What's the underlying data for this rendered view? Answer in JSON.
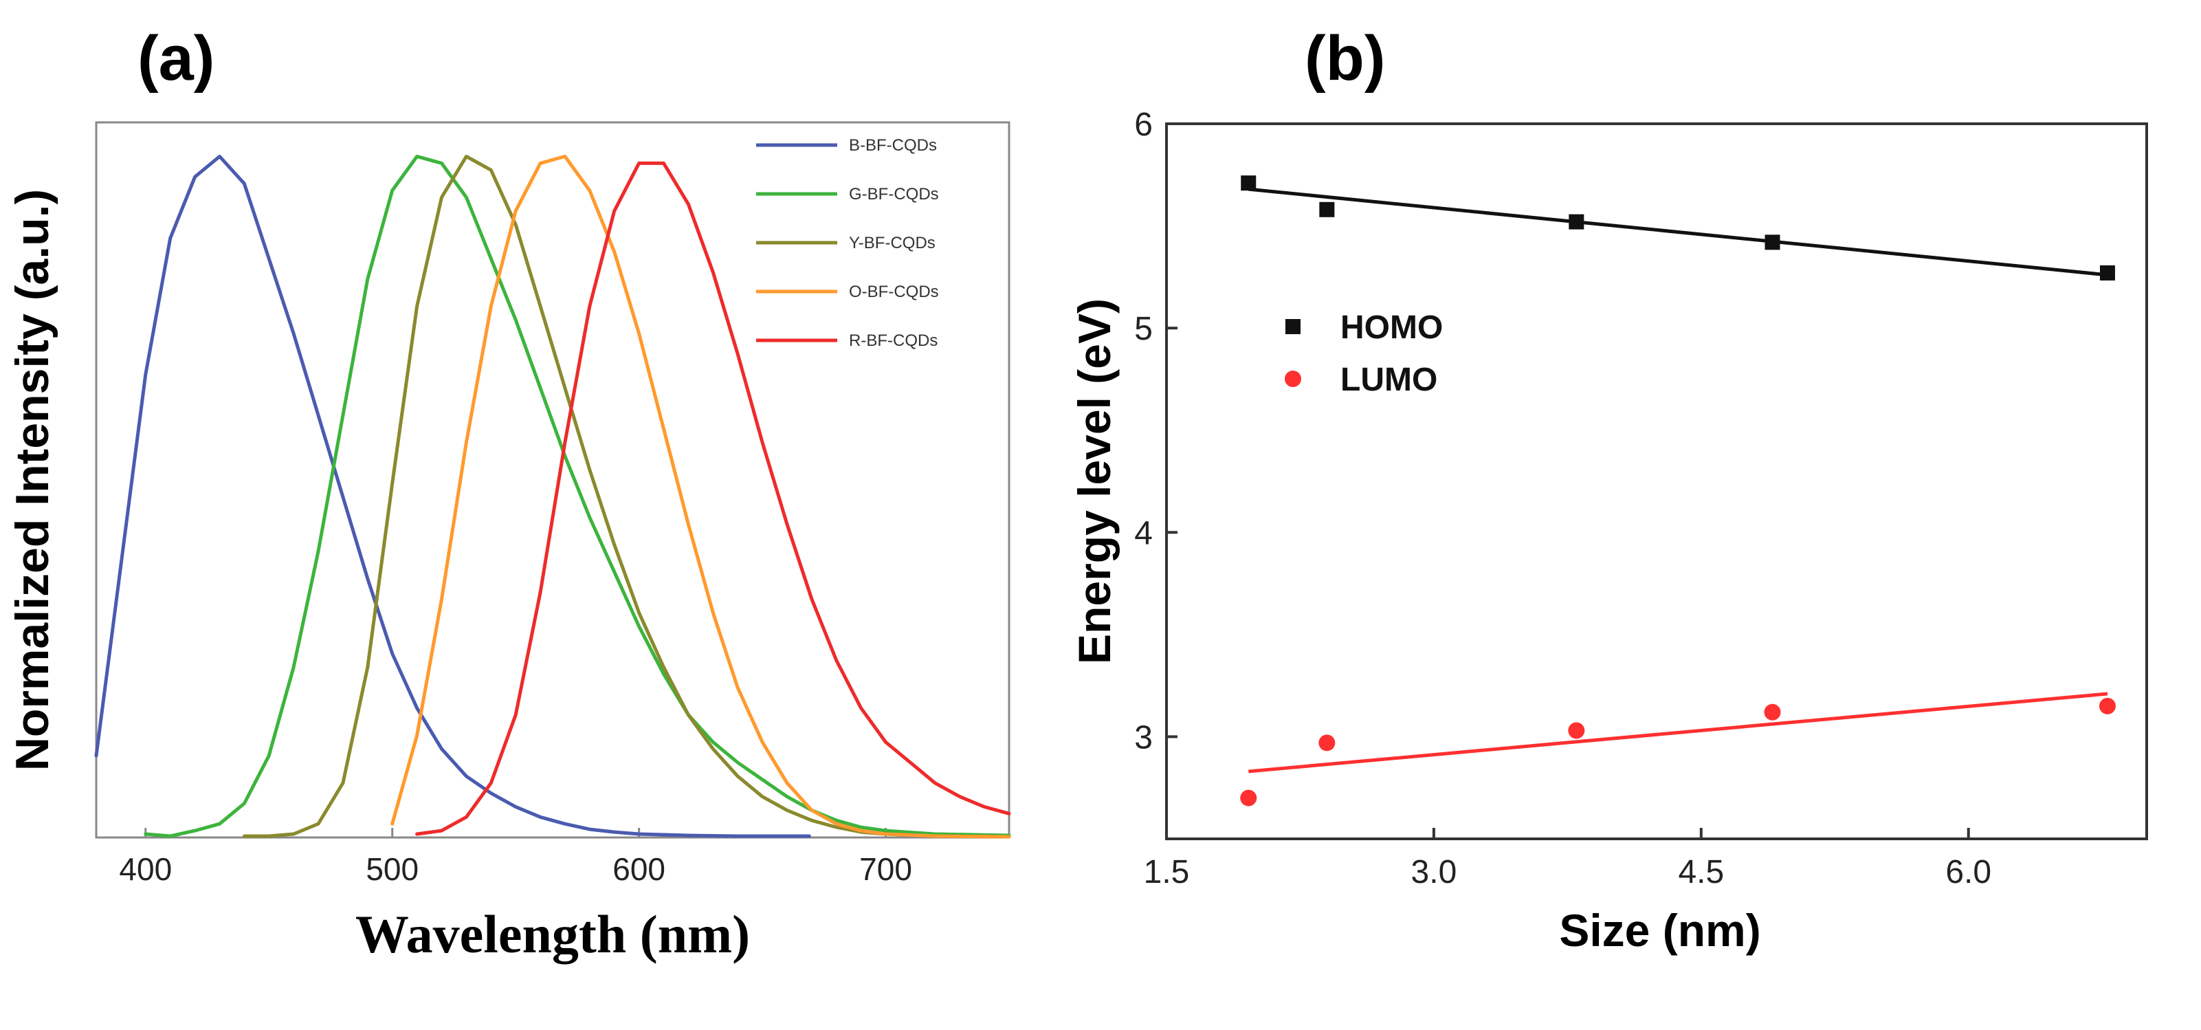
{
  "chart_data": [
    {
      "type": "line",
      "panel_label": "(a)",
      "title": "",
      "xlabel": "Wavelength (nm)",
      "ylabel": "Normalized Intensity (a.u.)",
      "xlim": [
        380,
        750
      ],
      "ylim": [
        0,
        1.05
      ],
      "x_ticks": [
        400,
        500,
        600,
        700
      ],
      "y_ticks": [],
      "legend_position": "top-right",
      "series": [
        {
          "name": "B-BF-CQDs",
          "color": "#4a5bb0",
          "x": [
            380,
            390,
            400,
            410,
            420,
            430,
            440,
            450,
            460,
            470,
            480,
            490,
            500,
            510,
            520,
            530,
            540,
            550,
            560,
            570,
            580,
            590,
            600,
            620,
            640,
            669
          ],
          "y": [
            0.12,
            0.4,
            0.68,
            0.88,
            0.97,
            1.0,
            0.96,
            0.85,
            0.74,
            0.62,
            0.5,
            0.38,
            0.27,
            0.19,
            0.13,
            0.09,
            0.065,
            0.045,
            0.03,
            0.02,
            0.012,
            0.008,
            0.005,
            0.003,
            0.002,
            0.002
          ]
        },
        {
          "name": "G-BF-CQDs",
          "color": "#3cb43c",
          "x": [
            400,
            410,
            420,
            430,
            440,
            450,
            460,
            470,
            480,
            490,
            500,
            510,
            520,
            530,
            540,
            550,
            560,
            570,
            580,
            590,
            600,
            610,
            620,
            630,
            640,
            650,
            660,
            670,
            680,
            690,
            700,
            720,
            750
          ],
          "y": [
            0.005,
            0.002,
            0.01,
            0.02,
            0.05,
            0.12,
            0.25,
            0.42,
            0.62,
            0.82,
            0.95,
            1.0,
            0.99,
            0.94,
            0.85,
            0.76,
            0.66,
            0.56,
            0.47,
            0.39,
            0.31,
            0.24,
            0.18,
            0.14,
            0.11,
            0.085,
            0.06,
            0.04,
            0.025,
            0.015,
            0.01,
            0.005,
            0.003
          ]
        },
        {
          "name": "Y-BF-CQDs",
          "color": "#8a8a2e",
          "x": [
            440,
            450,
            460,
            470,
            480,
            490,
            500,
            510,
            520,
            530,
            540,
            550,
            560,
            570,
            580,
            590,
            600,
            610,
            620,
            630,
            640,
            650,
            660,
            670,
            680,
            690,
            700,
            720,
            750
          ],
          "y": [
            0.002,
            0.002,
            0.005,
            0.02,
            0.08,
            0.25,
            0.52,
            0.78,
            0.94,
            1.0,
            0.98,
            0.9,
            0.78,
            0.66,
            0.54,
            0.43,
            0.33,
            0.25,
            0.18,
            0.13,
            0.09,
            0.06,
            0.04,
            0.025,
            0.015,
            0.008,
            0.005,
            0.002,
            0.001
          ]
        },
        {
          "name": "O-BF-CQDs",
          "color": "#ff9a2e",
          "x": [
            500,
            510,
            520,
            530,
            540,
            550,
            560,
            570,
            580,
            590,
            600,
            610,
            620,
            630,
            640,
            650,
            660,
            670,
            680,
            690,
            700,
            720,
            750
          ],
          "y": [
            0.02,
            0.15,
            0.35,
            0.58,
            0.78,
            0.92,
            0.99,
            1.0,
            0.95,
            0.86,
            0.74,
            0.6,
            0.46,
            0.33,
            0.22,
            0.14,
            0.08,
            0.04,
            0.02,
            0.01,
            0.005,
            0.002,
            0.001
          ]
        },
        {
          "name": "R-BF-CQDs",
          "color": "#ee2b2b",
          "x": [
            510,
            520,
            530,
            540,
            550,
            560,
            570,
            580,
            590,
            600,
            610,
            620,
            630,
            640,
            650,
            660,
            670,
            680,
            690,
            700,
            710,
            720,
            730,
            740,
            750
          ],
          "y": [
            0.005,
            0.01,
            0.03,
            0.08,
            0.18,
            0.36,
            0.58,
            0.78,
            0.92,
            0.99,
            0.99,
            0.93,
            0.83,
            0.71,
            0.58,
            0.46,
            0.35,
            0.26,
            0.19,
            0.14,
            0.11,
            0.08,
            0.06,
            0.045,
            0.035
          ]
        }
      ]
    },
    {
      "type": "scatter",
      "panel_label": "(b)",
      "title": "",
      "xlabel": "Size (nm)",
      "ylabel": "Energy level (eV)",
      "xlim": [
        1.5,
        7.0
      ],
      "ylim": [
        2.5,
        6.0
      ],
      "x_ticks": [
        "1.5",
        "3.0",
        "4.5",
        "6.0"
      ],
      "y_ticks": [
        "3",
        "4",
        "5",
        "6"
      ],
      "legend_position": "center-left",
      "series": [
        {
          "name": "HOMO",
          "color": "#111111",
          "marker": "square",
          "x": [
            1.96,
            2.4,
            3.8,
            4.9,
            6.78
          ],
          "y": [
            5.71,
            5.58,
            5.52,
            5.42,
            5.27
          ],
          "fit": {
            "x": [
              1.96,
              6.78
            ],
            "y": [
              5.68,
              5.26
            ]
          }
        },
        {
          "name": "LUMO",
          "color": "#ff3030",
          "marker": "circle",
          "x": [
            1.96,
            2.4,
            3.8,
            4.9,
            6.78
          ],
          "y": [
            2.7,
            2.97,
            3.03,
            3.12,
            3.15
          ],
          "fit": {
            "x": [
              1.96,
              6.78
            ],
            "y": [
              2.83,
              3.21
            ]
          }
        }
      ]
    }
  ]
}
